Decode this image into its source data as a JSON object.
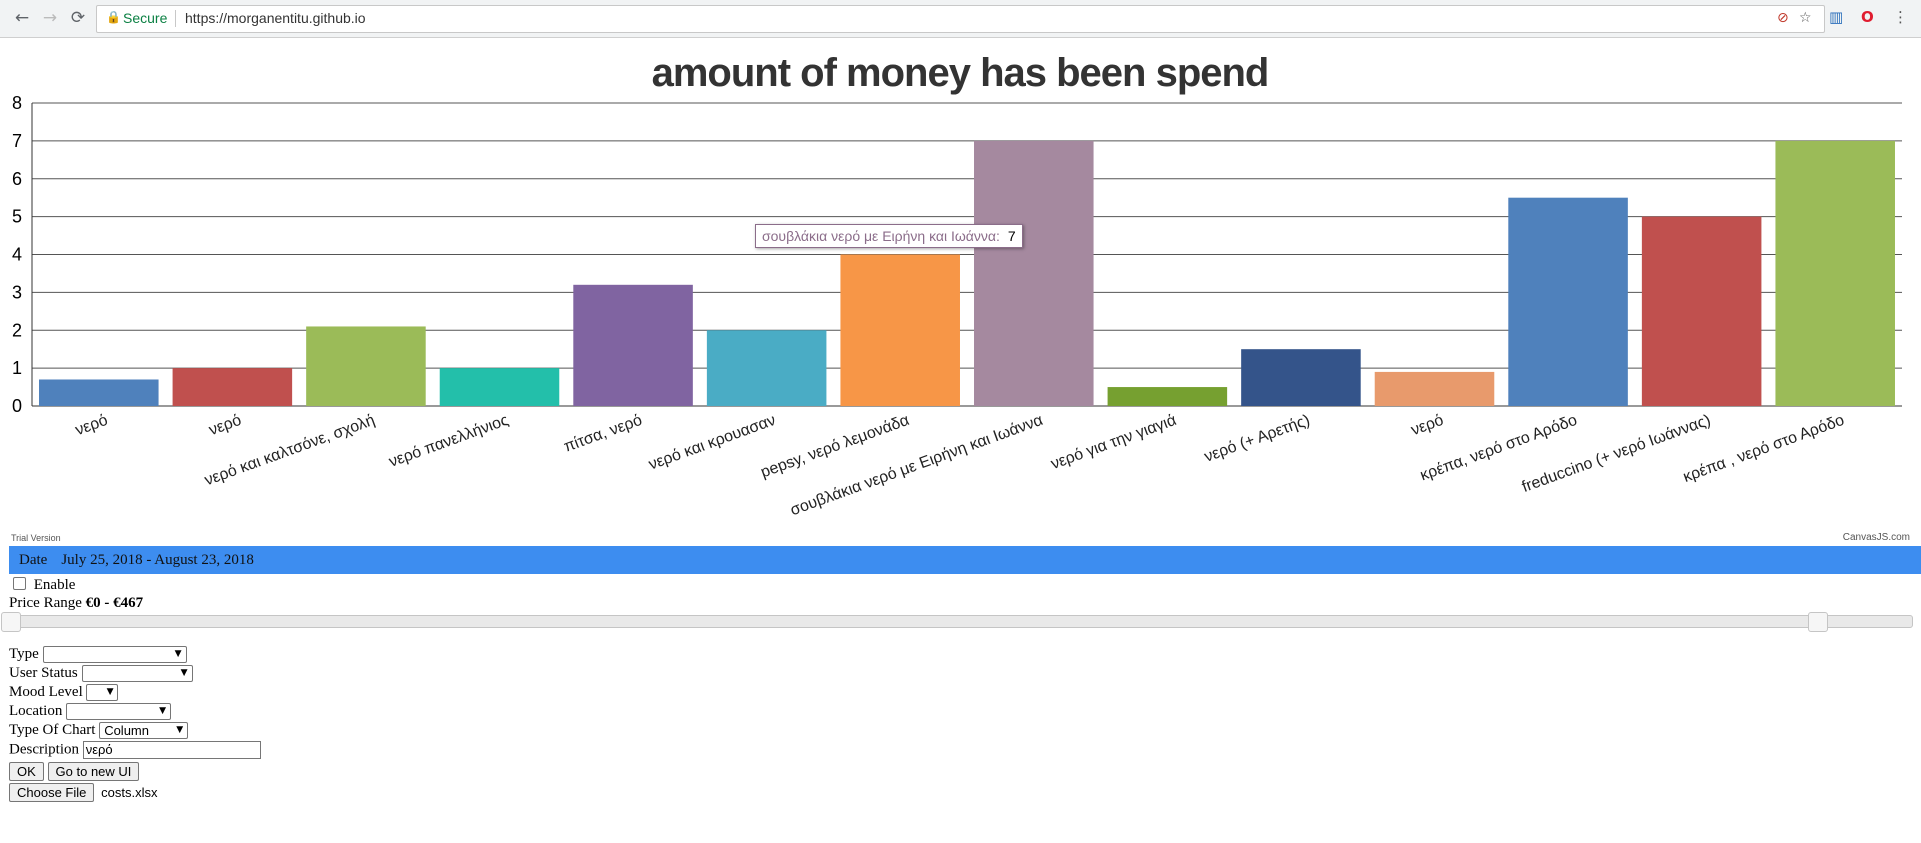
{
  "browser": {
    "secure_label": "Secure",
    "url": "https://morganentitu.github.io"
  },
  "chart_data": {
    "type": "bar",
    "title": "amount of money has been spend",
    "categories": [
      "νερό",
      "νερό",
      "νερό και καλτσόνε, σχολή",
      "νερό πανελλήνιος",
      "πίτσα, νερό",
      "νερό και κρουασαν",
      "pepsy, νερό λεμονάδα",
      "σουβλάκια νερό με Ειρήνη και Ιωάννα",
      "νερό για την γιαγιά",
      "νερό (+ Αρετής)",
      "νερό",
      "κρέπα, νερό στο Αρόδο",
      "freduccino (+ νερό Ιωάννας)",
      "κρέπα , νερό στο Αρόδο"
    ],
    "values": [
      0.7,
      1,
      2.1,
      1,
      3.2,
      2,
      4,
      7,
      0.5,
      1.5,
      0.9,
      5.5,
      5,
      7
    ],
    "colors": [
      "#4f81bc",
      "#c0504e",
      "#9bbb58",
      "#23bfaa",
      "#8064a1",
      "#4aacc5",
      "#f79647",
      "#a5899f",
      "#76a030",
      "#34548a",
      "#e89a6c",
      "#4f81bc",
      "#c0504e",
      "#9bbb58"
    ],
    "ylim": [
      0,
      8
    ],
    "yticks": [
      "0",
      "1",
      "2",
      "3",
      "4",
      "5",
      "6",
      "7",
      "8"
    ],
    "grid": true,
    "tooltip": {
      "label": "σουβλάκια νερό με Ειρήνη και Ιωάννα:",
      "value": "7"
    },
    "trial_text": "Trial Version",
    "credit_text": "CanvasJS.com"
  },
  "date_filter": {
    "label": "Date",
    "range": "July 25, 2018 - August 23, 2018"
  },
  "enable_label": "Enable",
  "price_range": {
    "label": "Price Range",
    "value": "€0 - €467",
    "low": 0,
    "high": 0.95
  },
  "filters": {
    "type_label": "Type",
    "user_status_label": "User Status",
    "mood_level_label": "Mood Level",
    "location_label": "Location",
    "chart_type_label": "Type Of Chart",
    "chart_type_value": "Column",
    "description_label": "Description",
    "description_value": "νερό"
  },
  "buttons": {
    "ok": "OK",
    "new_ui": "Go to new UI",
    "choose_file": "Choose File"
  },
  "file_name": "costs.xlsx"
}
